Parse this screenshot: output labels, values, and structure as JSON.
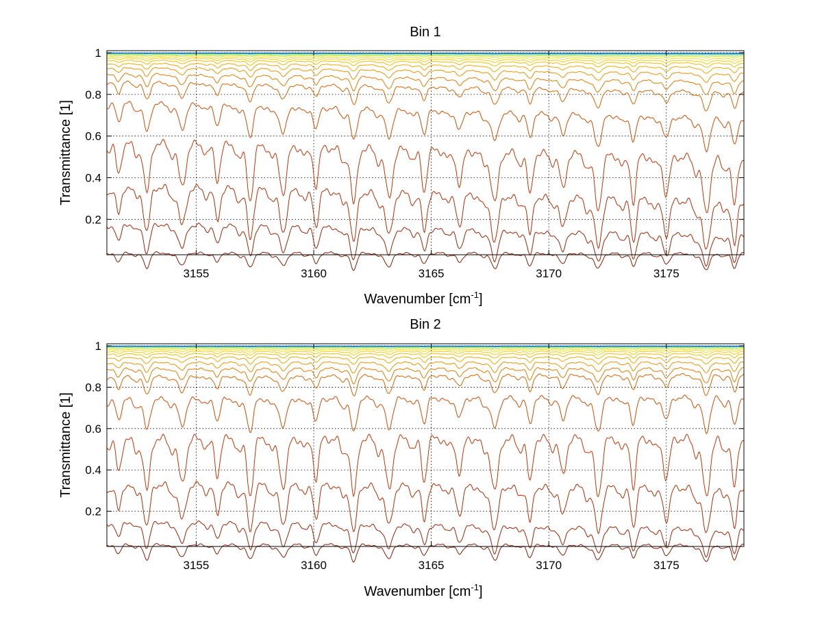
{
  "chart_data": [
    {
      "type": "line",
      "title": "Bin 1",
      "xlabel": "Wavenumber [cm",
      "xlabel_sup": "-1",
      "xlabel_tail": "]",
      "ylabel": "Transmittance [1]",
      "xlim": [
        3151.2,
        3178.3
      ],
      "ylim": [
        0.03,
        1.01
      ],
      "xticks": [
        3155,
        3160,
        3165,
        3170,
        3175
      ],
      "yticks": [
        0.2,
        0.4,
        0.6,
        0.8,
        1
      ],
      "ytick_labels": [
        "0.2",
        "0.4",
        "0.6",
        "0.8",
        "1"
      ],
      "grid": true,
      "line_colors": [
        "#8b1a00",
        "#a32000",
        "#b82a00",
        "#c83200",
        "#d44a00",
        "#dd6200",
        "#e57a00",
        "#ec9200",
        "#f0a800",
        "#f3bc00",
        "#f5cc10",
        "#f2dc30",
        "#d8e838",
        "#9ddc5a",
        "#4ec8a0",
        "#1a9ce0",
        "#0060d0"
      ],
      "series_base_levels": [
        0.04,
        0.18,
        0.36,
        0.57,
        0.76,
        0.86,
        0.9,
        0.93,
        0.95,
        0.965,
        0.975,
        0.982,
        0.988,
        0.992,
        0.996,
        0.998,
        0.999
      ],
      "series_end_levels": [
        0.035,
        0.12,
        0.28,
        0.49,
        0.68,
        0.81,
        0.86,
        0.9,
        0.93,
        0.95,
        0.962,
        0.973,
        0.982,
        0.988,
        0.993,
        0.996,
        0.998
      ],
      "absorption_lines": [
        3151.7,
        3152.9,
        3154.4,
        3155.9,
        3157.3,
        3158.7,
        3160.1,
        3161.7,
        3163.2,
        3164.7,
        3166.2,
        3167.7,
        3169.2,
        3170.6,
        3172.1,
        3173.6,
        3175.0,
        3176.7,
        3177.9
      ]
    },
    {
      "type": "line",
      "title": "Bin 2",
      "xlabel": "Wavenumber [cm",
      "xlabel_sup": "-1",
      "xlabel_tail": "]",
      "ylabel": "Transmittance [1]",
      "xlim": [
        3151.2,
        3178.3
      ],
      "ylim": [
        0.03,
        1.01
      ],
      "xticks": [
        3155,
        3160,
        3165,
        3170,
        3175
      ],
      "yticks": [
        0.2,
        0.4,
        0.6,
        0.8,
        1
      ],
      "ytick_labels": [
        "0.2",
        "0.4",
        "0.6",
        "0.8",
        "1"
      ],
      "grid": true,
      "line_colors": [
        "#8b1a00",
        "#a32000",
        "#b82a00",
        "#c83200",
        "#d44a00",
        "#dd6200",
        "#e57a00",
        "#ec9200",
        "#f0a800",
        "#f3bc00",
        "#f5cc10",
        "#f2dc30",
        "#d8e838",
        "#9ddc5a",
        "#4ec8a0",
        "#1a9ce0",
        "#0060d0"
      ],
      "series_base_levels": [
        0.04,
        0.15,
        0.33,
        0.55,
        0.74,
        0.85,
        0.89,
        0.92,
        0.945,
        0.962,
        0.973,
        0.981,
        0.987,
        0.992,
        0.996,
        0.998,
        0.999
      ],
      "series_end_levels": [
        0.035,
        0.11,
        0.31,
        0.55,
        0.75,
        0.86,
        0.89,
        0.92,
        0.945,
        0.962,
        0.973,
        0.981,
        0.987,
        0.992,
        0.996,
        0.998,
        0.999
      ],
      "absorption_lines": [
        3151.7,
        3152.9,
        3154.4,
        3155.9,
        3157.3,
        3158.7,
        3160.1,
        3161.7,
        3163.2,
        3164.7,
        3166.2,
        3167.7,
        3169.2,
        3170.6,
        3172.1,
        3173.6,
        3175.0,
        3176.7,
        3177.9
      ]
    }
  ]
}
